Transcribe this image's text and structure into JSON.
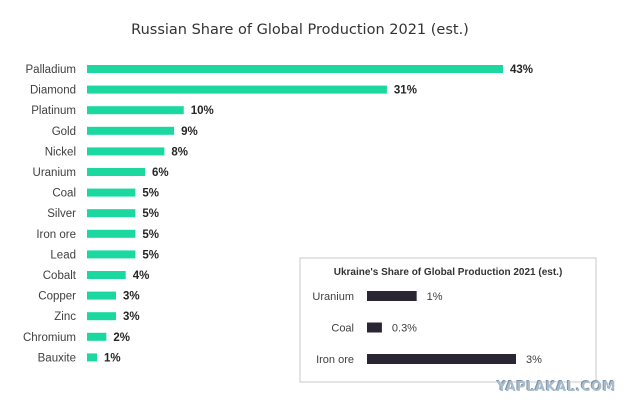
{
  "chart_data": [
    {
      "type": "bar",
      "orientation": "horizontal",
      "title": "Russian Share of Global Production 2021 (est.)",
      "categories": [
        "Palladium",
        "Diamond",
        "Platinum",
        "Gold",
        "Nickel",
        "Uranium",
        "Coal",
        "Silver",
        "Iron ore",
        "Lead",
        "Cobalt",
        "Copper",
        "Zinc",
        "Chromium",
        "Bauxite"
      ],
      "values": [
        43,
        31,
        10,
        9,
        8,
        6,
        5,
        5,
        5,
        5,
        4,
        3,
        3,
        2,
        1
      ],
      "value_labels": [
        "43%",
        "31%",
        "10%",
        "9%",
        "8%",
        "6%",
        "5%",
        "5%",
        "5%",
        "5%",
        "4%",
        "3%",
        "3%",
        "2%",
        "1%"
      ],
      "unit": "%",
      "xlim": [
        0,
        43
      ],
      "grid": false,
      "bar_color": "#1ad8a0"
    },
    {
      "type": "bar",
      "orientation": "horizontal",
      "title": "Ukraine's Share of Global Production 2021 (est.)",
      "categories": [
        "Uranium",
        "Coal",
        "Iron ore"
      ],
      "values": [
        1,
        0.3,
        3
      ],
      "value_labels": [
        "1%",
        "0.3%",
        "3%"
      ],
      "unit": "%",
      "xlim": [
        0,
        3
      ],
      "grid": false,
      "bar_color": "#2a2533",
      "placement": "bottom-right inset"
    }
  ],
  "watermark": "YAPLAKAL.COM"
}
